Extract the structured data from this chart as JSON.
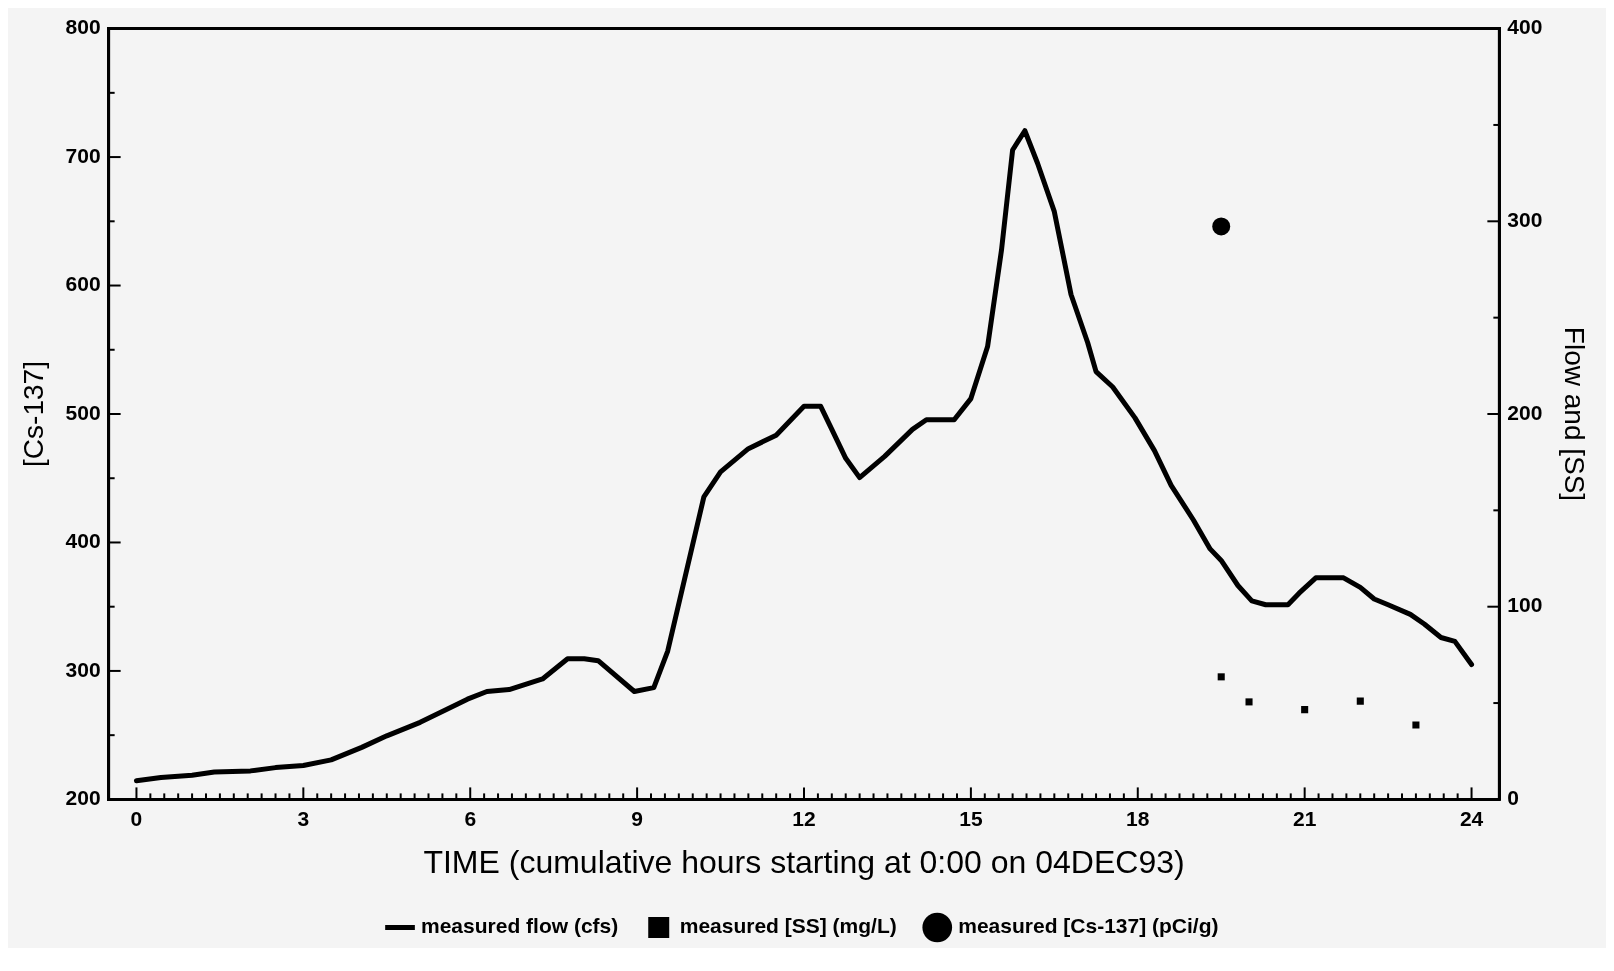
{
  "chart_data": {
    "type": "line",
    "xlabel": "TIME (cumulative hours starting at 0:00 on 04DEC93)",
    "ylabel": "[Cs-137]",
    "y2label": "Flow and [SS]",
    "xlim": [
      -0.5,
      24.5
    ],
    "xticks": [
      0,
      {
        "value": 0.25,
        "label": null
      },
      {
        "value": 0.5,
        "label": null
      },
      {
        "value": 0.75,
        "label": null
      },
      {
        "value": 1,
        "label": null
      },
      {
        "value": 1.25,
        "label": null
      },
      {
        "value": 1.5,
        "label": null
      },
      {
        "value": 1.75,
        "label": null
      },
      {
        "value": 2,
        "label": null
      },
      {
        "value": 2.25,
        "label": null
      },
      {
        "value": 2.5,
        "label": null
      },
      {
        "value": 2.75,
        "label": null
      },
      3,
      {
        "value": 3.25,
        "label": null
      },
      {
        "value": 3.5,
        "label": null
      },
      {
        "value": 3.75,
        "label": null
      },
      {
        "value": 4,
        "label": null
      },
      {
        "value": 4.25,
        "label": null
      },
      {
        "value": 4.5,
        "label": null
      },
      {
        "value": 4.75,
        "label": null
      },
      {
        "value": 5,
        "label": null
      },
      {
        "value": 5.25,
        "label": null
      },
      {
        "value": 5.5,
        "label": null
      },
      {
        "value": 5.75,
        "label": null
      },
      6,
      {
        "value": 6.25,
        "label": null
      },
      {
        "value": 6.5,
        "label": null
      },
      {
        "value": 6.75,
        "label": null
      },
      {
        "value": 7,
        "label": null
      },
      {
        "value": 7.25,
        "label": null
      },
      {
        "value": 7.5,
        "label": null
      },
      {
        "value": 7.75,
        "label": null
      },
      {
        "value": 8,
        "label": null
      },
      {
        "value": 8.25,
        "label": null
      },
      {
        "value": 8.5,
        "label": null
      },
      {
        "value": 8.75,
        "label": null
      },
      9,
      {
        "value": 9.25,
        "label": null
      },
      {
        "value": 9.5,
        "label": null
      },
      {
        "value": 9.75,
        "label": null
      },
      {
        "value": 10,
        "label": null
      },
      {
        "value": 10.25,
        "label": null
      },
      {
        "value": 10.5,
        "label": null
      },
      {
        "value": 10.75,
        "label": null
      },
      {
        "value": 11,
        "label": null
      },
      {
        "value": 11.25,
        "label": null
      },
      {
        "value": 11.5,
        "label": null
      },
      {
        "value": 11.75,
        "label": null
      },
      12,
      {
        "value": 12.25,
        "label": null
      },
      {
        "value": 12.5,
        "label": null
      },
      {
        "value": 12.75,
        "label": null
      },
      {
        "value": 13,
        "label": null
      },
      {
        "value": 13.25,
        "label": null
      },
      {
        "value": 13.5,
        "label": null
      },
      {
        "value": 13.75,
        "label": null
      },
      {
        "value": 14,
        "label": null
      },
      {
        "value": 14.25,
        "label": null
      },
      {
        "value": 14.5,
        "label": null
      },
      {
        "value": 14.75,
        "label": null
      },
      15,
      {
        "value": 15.25,
        "label": null
      },
      {
        "value": 15.5,
        "label": null
      },
      {
        "value": 15.75,
        "label": null
      },
      {
        "value": 16,
        "label": null
      },
      {
        "value": 16.25,
        "label": null
      },
      {
        "value": 16.5,
        "label": null
      },
      {
        "value": 16.75,
        "label": null
      },
      {
        "value": 17,
        "label": null
      },
      {
        "value": 17.25,
        "label": null
      },
      {
        "value": 17.5,
        "label": null
      },
      {
        "value": 17.75,
        "label": null
      },
      18,
      {
        "value": 18.25,
        "label": null
      },
      {
        "value": 18.5,
        "label": null
      },
      {
        "value": 18.75,
        "label": null
      },
      {
        "value": 19,
        "label": null
      },
      {
        "value": 19.25,
        "label": null
      },
      {
        "value": 19.5,
        "label": null
      },
      {
        "value": 19.75,
        "label": null
      },
      {
        "value": 20,
        "label": null
      },
      {
        "value": 20.25,
        "label": null
      },
      {
        "value": 20.5,
        "label": null
      },
      {
        "value": 20.75,
        "label": null
      },
      21,
      {
        "value": 21.25,
        "label": null
      },
      {
        "value": 21.5,
        "label": null
      },
      {
        "value": 21.75,
        "label": null
      },
      {
        "value": 22,
        "label": null
      },
      {
        "value": 22.25,
        "label": null
      },
      {
        "value": 22.5,
        "label": null
      },
      {
        "value": 22.75,
        "label": null
      },
      {
        "value": 23,
        "label": null
      },
      {
        "value": 23.25,
        "label": null
      },
      {
        "value": 23.5,
        "label": null
      },
      {
        "value": 23.75,
        "label": null
      },
      24
    ],
    "ylim": [
      200,
      800
    ],
    "yticks": [
      200,
      {
        "value": 250,
        "label": null
      },
      300,
      {
        "value": 350,
        "label": null
      },
      400,
      {
        "value": 450,
        "label": null
      },
      500,
      {
        "value": 550,
        "label": null
      },
      600,
      {
        "value": 650,
        "label": null
      },
      700,
      {
        "value": 750,
        "label": null
      },
      800
    ],
    "y2lim": [
      0,
      400
    ],
    "y2ticks": [
      0,
      {
        "value": 50,
        "label": null
      },
      100,
      {
        "value": 150,
        "label": null
      },
      200,
      {
        "value": 250,
        "label": null
      },
      300,
      {
        "value": 350,
        "label": null
      },
      400
    ],
    "legend": "bottom",
    "series": [
      {
        "name": "measured flow (cfs)",
        "axis": "y2",
        "color": "#000000",
        "marker": "none",
        "line_style": "solid",
        "x": [
          0,
          0.44,
          1,
          1.4,
          2.05,
          2.5,
          3,
          3.5,
          4.05,
          4.5,
          5.1,
          5.6,
          5.95,
          6.3,
          6.7,
          7.3,
          7.75,
          8.05,
          8.3,
          8.95,
          9.3,
          9.55,
          10.2,
          10.5,
          11,
          11.5,
          12,
          12.3,
          12.5,
          12.75,
          13,
          13.45,
          13.95,
          14.2,
          14.7,
          15,
          15.3,
          15.55,
          15.75,
          15.97,
          16.2,
          16.5,
          16.8,
          17.1,
          17.25,
          17.55,
          17.95,
          18.3,
          18.6,
          19,
          19.3,
          19.5,
          19.8,
          20.05,
          20.3,
          20.7,
          20.9,
          21.2,
          21.7,
          22,
          22.25,
          22.5,
          22.9,
          23.15,
          23.45,
          23.7,
          24
        ],
        "values": [
          9.7,
          11.4,
          12.5,
          14.2,
          14.8,
          16.5,
          17.6,
          20.5,
          27,
          33,
          40,
          47,
          52,
          56,
          57,
          62.5,
          73,
          73,
          72,
          56,
          58,
          77,
          157,
          170,
          182,
          189,
          204,
          204,
          192,
          177,
          167,
          178,
          192,
          197,
          197,
          208,
          235,
          285,
          337,
          347,
          330,
          305,
          262,
          237,
          222,
          214,
          198,
          181,
          163,
          145,
          130,
          124,
          111,
          103,
          101,
          101,
          107,
          115,
          115,
          110,
          104,
          101,
          96,
          91,
          84,
          82,
          70
        ]
      },
      {
        "name": "measured [SS] (mg/L)",
        "type": "scatter",
        "axis": "y2",
        "color": "#000000",
        "marker": "square",
        "x": [
          19.5,
          20,
          21,
          22,
          23
        ],
        "values": [
          63.6,
          50.6,
          46.6,
          51,
          38.6
        ]
      },
      {
        "name": "measured [Cs-137] (pCi/g)",
        "type": "scatter",
        "axis": "y",
        "color": "#000000",
        "marker": "circle",
        "x": [
          19.5
        ],
        "values": [
          646
        ]
      }
    ]
  }
}
